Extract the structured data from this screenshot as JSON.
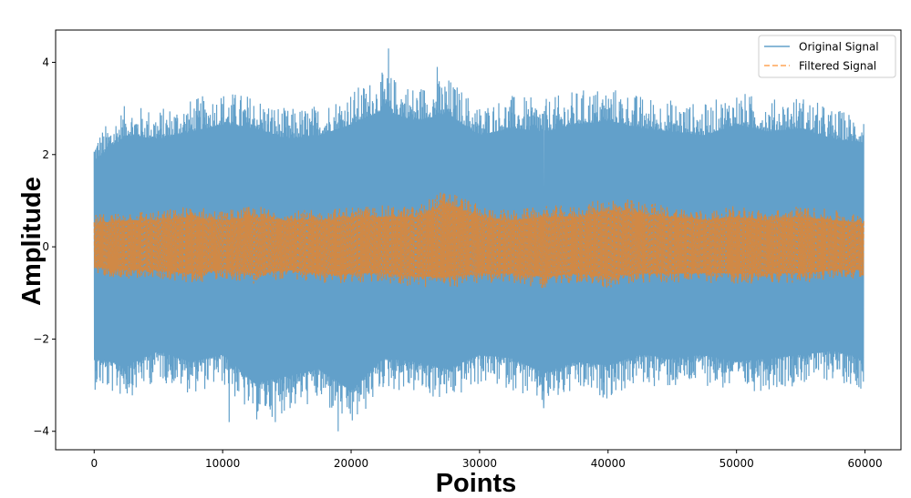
{
  "chart_data": {
    "type": "line",
    "title": "",
    "xlabel": "Points",
    "ylabel": "Amplitude",
    "xlim": [
      -3000,
      62800
    ],
    "ylim": [
      -4.4,
      4.7
    ],
    "x_ticks": [
      0,
      10000,
      20000,
      30000,
      40000,
      50000,
      60000
    ],
    "y_ticks": [
      -4,
      -2,
      0,
      2,
      4
    ],
    "y_tick_labels": [
      "−4",
      "−2",
      "0",
      "2",
      "4"
    ],
    "grid": false,
    "legend_position": "top-right",
    "x_range": [
      0,
      59900
    ],
    "series": [
      {
        "name": "Original Signal",
        "style": "solid",
        "color": "#1f77b4",
        "opacity": 0.7,
        "description": "noisy signal centered at 0; dense band from about -2.2 to 2.2",
        "envelope": {
          "x": [
            0,
            2500,
            5000,
            7500,
            10000,
            12500,
            15000,
            17500,
            20000,
            22500,
            25000,
            27500,
            30000,
            32500,
            35000,
            37500,
            40000,
            42500,
            45000,
            47500,
            50000,
            52500,
            55000,
            57500,
            59900
          ],
          "max": [
            2.4,
            3.1,
            3.0,
            3.2,
            3.4,
            3.3,
            3.0,
            3.1,
            3.4,
            3.8,
            3.5,
            3.7,
            3.1,
            3.3,
            3.2,
            3.4,
            3.5,
            3.3,
            3.2,
            3.1,
            3.4,
            3.2,
            3.3,
            3.0,
            2.9
          ],
          "min": [
            -3.1,
            -3.3,
            -2.9,
            -3.2,
            -3.0,
            -3.8,
            -3.6,
            -3.4,
            -4.0,
            -3.1,
            -3.2,
            -3.4,
            -3.0,
            -3.1,
            -3.5,
            -3.2,
            -3.3,
            -3.0,
            -3.1,
            -3.0,
            -3.2,
            -3.1,
            -3.0,
            -2.9,
            -3.1
          ]
        },
        "peaks": [
          [
            10500,
            -3.8
          ],
          [
            14100,
            -3.8
          ],
          [
            19000,
            -4.0
          ],
          [
            22900,
            4.3
          ],
          [
            26700,
            3.9
          ],
          [
            35000,
            -3.5
          ]
        ]
      },
      {
        "name": "Filtered Signal",
        "style": "dashed",
        "color": "#ff7f0e",
        "opacity": 0.7,
        "description": "filtered signal centered at 0; dense band from about -0.6 to 0.7",
        "envelope": {
          "x": [
            0,
            2500,
            5000,
            7500,
            10000,
            12500,
            15000,
            17500,
            20000,
            22500,
            25000,
            27500,
            30000,
            32500,
            35000,
            37500,
            40000,
            42500,
            45000,
            47500,
            50000,
            52500,
            55000,
            57500,
            59900
          ],
          "max": [
            0.7,
            0.8,
            0.8,
            0.9,
            0.8,
            0.9,
            0.8,
            0.8,
            0.9,
            0.9,
            0.9,
            1.3,
            0.9,
            0.8,
            0.9,
            0.9,
            1.1,
            1.0,
            0.9,
            0.8,
            0.9,
            0.8,
            0.9,
            0.8,
            0.7
          ],
          "min": [
            -0.6,
            -0.7,
            -0.7,
            -0.8,
            -0.7,
            -0.8,
            -0.7,
            -0.8,
            -0.8,
            -0.8,
            -0.9,
            -0.9,
            -0.8,
            -0.8,
            -0.9,
            -0.8,
            -0.9,
            -0.8,
            -0.8,
            -0.8,
            -0.8,
            -0.8,
            -0.8,
            -0.7,
            -0.7
          ]
        }
      }
    ]
  }
}
